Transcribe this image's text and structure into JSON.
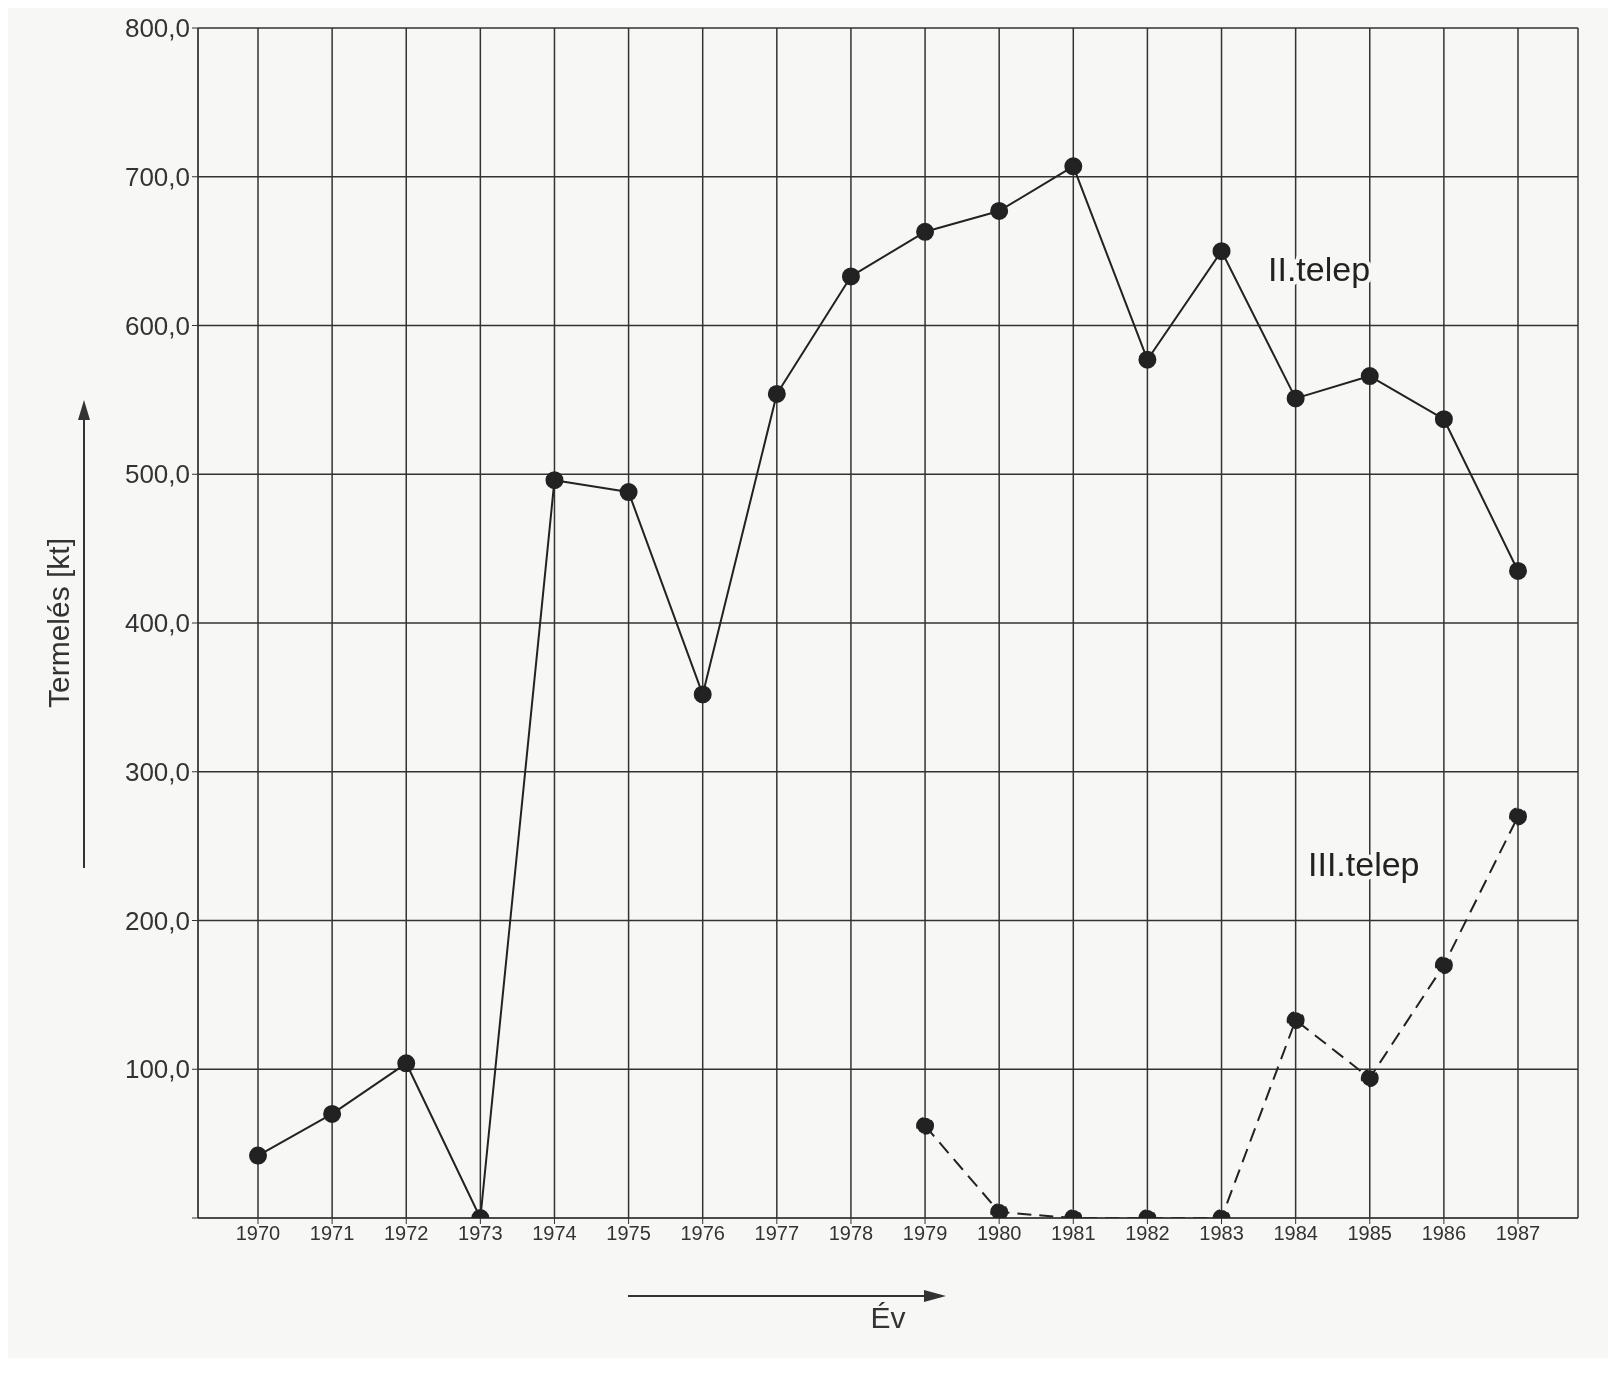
{
  "chart_data": {
    "type": "line",
    "xlabel": "Év",
    "ylabel": "Termelés [kt]",
    "categories": [
      "1970",
      "1971",
      "1972",
      "1973",
      "1974",
      "1975",
      "1976",
      "1977",
      "1978",
      "1979",
      "1980",
      "1981",
      "1982",
      "1983",
      "1984",
      "1985",
      "1986",
      "1987"
    ],
    "series": [
      {
        "name": "II.telep",
        "color": "#222222",
        "line_style": "solid",
        "values": [
          42,
          70,
          104,
          0,
          496,
          488,
          352,
          554,
          633,
          663,
          677,
          707,
          577,
          650,
          551,
          566,
          537,
          435
        ]
      },
      {
        "name": "III.telep",
        "color": "#222222",
        "line_style": "dashed",
        "values": [
          null,
          null,
          null,
          null,
          null,
          null,
          null,
          null,
          null,
          62,
          4,
          0,
          0,
          0,
          133,
          94,
          170,
          270
        ]
      }
    ],
    "ylim": [
      0,
      800
    ],
    "yticks": [
      {
        "value": 0,
        "label": null
      },
      {
        "value": 100,
        "label": "100,0"
      },
      {
        "value": 200,
        "label": "200,0"
      },
      {
        "value": 300,
        "label": "300,0"
      },
      {
        "value": 400,
        "label": "400,0"
      },
      {
        "value": 500,
        "label": "500,0"
      },
      {
        "value": 600,
        "label": "600,0"
      },
      {
        "value": 700,
        "label": "700,0"
      },
      {
        "value": 800,
        "label": "800,0"
      }
    ],
    "grid": true,
    "marker": "circle"
  }
}
